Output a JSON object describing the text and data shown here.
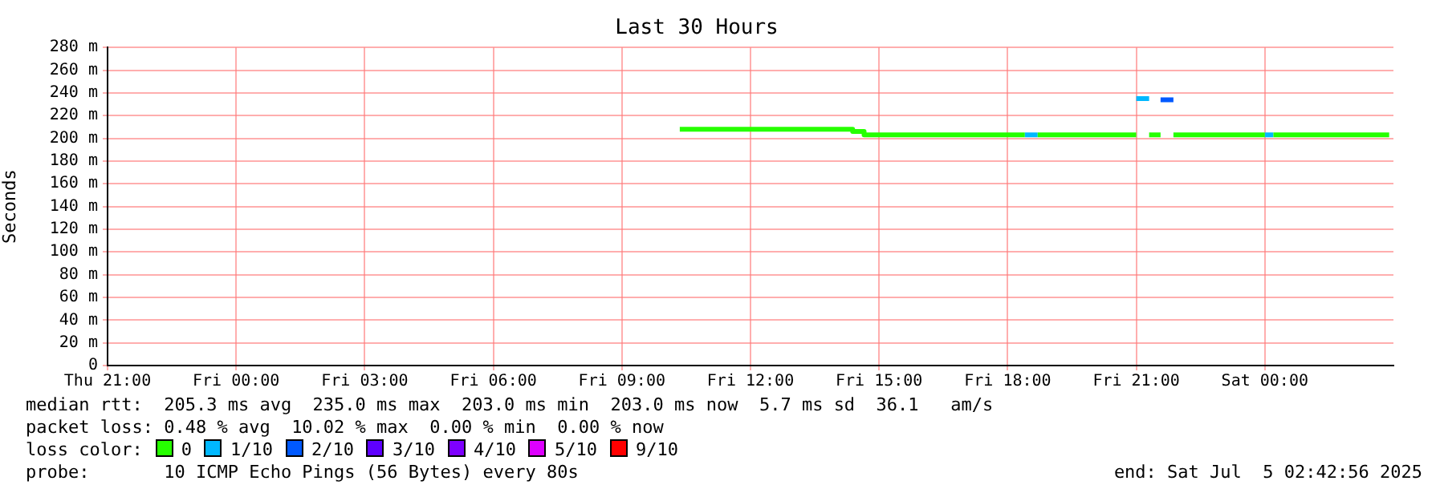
{
  "chart_data": {
    "type": "line",
    "title": "Last 30 Hours",
    "ylabel": "Seconds",
    "legend_title": "loss color:",
    "legend": "bottom",
    "grid": true,
    "line_style": "solid",
    "marker": "none",
    "xlim": [
      "2025-07-03T21:00",
      "2025-07-05T03:00"
    ],
    "xticks": [
      {
        "value": "2025-07-03T21:00",
        "label": "Thu 21:00"
      },
      {
        "value": "2025-07-04T00:00",
        "label": "Fri 00:00"
      },
      {
        "value": "2025-07-04T03:00",
        "label": "Fri 03:00"
      },
      {
        "value": "2025-07-04T06:00",
        "label": "Fri 06:00"
      },
      {
        "value": "2025-07-04T09:00",
        "label": "Fri 09:00"
      },
      {
        "value": "2025-07-04T12:00",
        "label": "Fri 12:00"
      },
      {
        "value": "2025-07-04T15:00",
        "label": "Fri 15:00"
      },
      {
        "value": "2025-07-04T18:00",
        "label": "Fri 18:00"
      },
      {
        "value": "2025-07-04T21:00",
        "label": "Fri 21:00"
      },
      {
        "value": "2025-07-05T00:00",
        "label": "Sat 00:00"
      }
    ],
    "ylim": [
      0,
      280
    ],
    "yticks": [
      0,
      {
        "value": 20,
        "label": "20 m"
      },
      {
        "value": 40,
        "label": "40 m"
      },
      {
        "value": 60,
        "label": "60 m"
      },
      {
        "value": 80,
        "label": "80 m"
      },
      {
        "value": 100,
        "label": "100 m"
      },
      {
        "value": 120,
        "label": "120 m"
      },
      {
        "value": 140,
        "label": "140 m"
      },
      {
        "value": 160,
        "label": "160 m"
      },
      {
        "value": 180,
        "label": "180 m"
      },
      {
        "value": 200,
        "label": "200 m"
      },
      {
        "value": 220,
        "label": "220 m"
      },
      {
        "value": 240,
        "label": "240 m"
      },
      {
        "value": 260,
        "label": "260 m"
      },
      {
        "value": 280,
        "label": "280 m"
      }
    ],
    "series": [
      {
        "name": "0",
        "color": "#26ff00",
        "x": [
          "2025-07-04T10:21",
          "2025-07-04T14:23",
          "2025-07-04T14:23",
          "2025-07-04T14:39",
          "2025-07-04T14:39",
          "2025-07-04T18:24",
          "2025-07-04T18:30",
          "2025-07-04T18:42",
          "2025-07-04T21:00",
          "2025-07-04T21:06",
          "2025-07-04T21:18",
          "2025-07-04T21:34",
          "2025-07-04T21:42",
          "2025-07-04T21:52",
          "2025-07-05T00:00",
          "2025-07-05T00:06",
          "2025-07-05T00:12",
          "2025-07-05T02:54"
        ],
        "values": [
          208,
          208,
          206,
          206,
          203,
          203,
          null,
          203,
          203,
          null,
          203,
          203,
          null,
          203,
          203,
          null,
          203,
          203
        ]
      },
      {
        "name": "1/10",
        "color": "#00b8ff",
        "x": [
          "2025-07-04T18:24",
          "2025-07-04T18:42",
          "2025-07-04T18:48",
          "2025-07-04T21:00",
          "2025-07-04T21:18",
          "2025-07-04T21:24",
          "2025-07-05T00:00",
          "2025-07-05T00:12"
        ],
        "values": [
          203,
          203,
          null,
          235,
          235,
          null,
          203,
          203
        ]
      },
      {
        "name": "2/10",
        "color": "#0059ff",
        "x": [
          "2025-07-04T21:34",
          "2025-07-04T21:52"
        ],
        "values": [
          234,
          234
        ]
      },
      {
        "name": "3/10",
        "color": "#5e00ff"
      },
      {
        "name": "4/10",
        "color": "#7e00ff"
      },
      {
        "name": "5/10",
        "color": "#dd00ff"
      },
      {
        "name": "9/10",
        "color": "#ff0000"
      }
    ],
    "annotations": [
      "median rtt:  205.3 ms avg  235.0 ms max  203.0 ms min  203.0 ms now  5.7 ms sd  36.1   am/s",
      "packet loss: 0.48 % avg  10.02 % max  0.00 % min  0.00 % now",
      "probe:       10 ICMP Echo Pings (56 Bytes) every 80s",
      "end: Sat Jul  5 02:42:56 2025"
    ]
  }
}
